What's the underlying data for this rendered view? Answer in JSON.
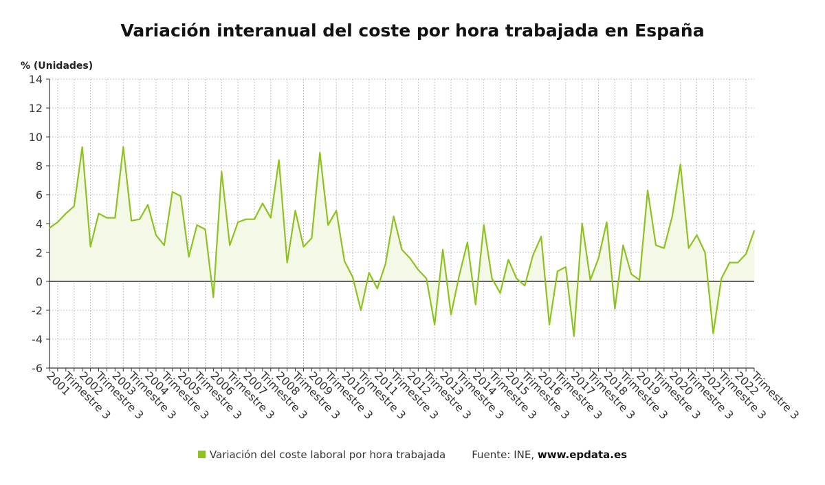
{
  "colors": {
    "line": "#8dc21f",
    "fill": "#f4f8e6",
    "grid": "#c4c4c4",
    "axis": "#333333",
    "zero": "#333333"
  },
  "legend": {
    "series_label": "Variación del coste laboral por hora trabajada",
    "source_prefix": "Fuente: INE,",
    "source_site": "www.epdata.es"
  },
  "chart_data": {
    "type": "area",
    "title": "Variación interanual del coste por hora trabajada en España",
    "ylabel": "% (Unidades)",
    "xlabel": "",
    "ylim": [
      -6,
      14
    ],
    "yticks": [
      -6,
      -4,
      -2,
      0,
      2,
      4,
      6,
      8,
      10,
      12,
      14
    ],
    "grid": true,
    "x_tick_labels": [
      "2001",
      "Trimestre 3",
      "2002",
      "Trimestre 3",
      "2003",
      "Trimestre 3",
      "2004",
      "Trimestre 3",
      "2005",
      "Trimestre 3",
      "2006",
      "Trimestre 3",
      "2007",
      "Trimestre 3",
      "2008",
      "Trimestre 3",
      "2009",
      "Trimestre 3",
      "2010",
      "Trimestre 3",
      "2011",
      "Trimestre 3",
      "2012",
      "Trimestre 3",
      "2013",
      "Trimestre 3",
      "2014",
      "Trimestre 3",
      "2015",
      "Trimestre 3",
      "2016",
      "Trimestre 3",
      "2017",
      "Trimestre 3",
      "2018",
      "Trimestre 3",
      "2019",
      "Trimestre 3",
      "2020",
      "Trimestre 3",
      "2021",
      "Trimestre 3",
      "2022",
      "Trimestre 3"
    ],
    "legend_position": "bottom",
    "series": [
      {
        "name": "Variación del coste laboral por hora trabajada",
        "start": "2001 Trimestre 1",
        "frequency": "quarterly",
        "values": [
          3.7,
          4.1,
          4.7,
          5.2,
          9.3,
          2.4,
          4.7,
          4.4,
          4.4,
          9.3,
          4.2,
          4.3,
          5.3,
          3.2,
          2.5,
          6.2,
          5.9,
          1.7,
          3.9,
          3.6,
          -1.1,
          7.6,
          2.5,
          4.1,
          4.3,
          4.3,
          5.4,
          4.4,
          8.4,
          1.3,
          4.9,
          2.4,
          3.0,
          8.9,
          3.9,
          4.9,
          1.4,
          0.3,
          -2.0,
          0.6,
          -0.5,
          1.2,
          4.5,
          2.2,
          1.6,
          0.8,
          0.2,
          -3.0,
          2.2,
          -2.3,
          0.4,
          2.7,
          -1.6,
          3.9,
          0.2,
          -0.8,
          1.5,
          0.2,
          -0.3,
          1.8,
          3.1,
          -3.0,
          0.7,
          1.0,
          -3.8,
          4.0,
          0.1,
          1.6,
          4.1,
          -1.9,
          2.5,
          0.5,
          0.1,
          6.3,
          2.5,
          2.3,
          4.5,
          8.1,
          2.3,
          3.2,
          2.0,
          -3.6,
          0.2,
          1.3,
          1.3,
          1.9,
          3.5
        ]
      }
    ]
  }
}
